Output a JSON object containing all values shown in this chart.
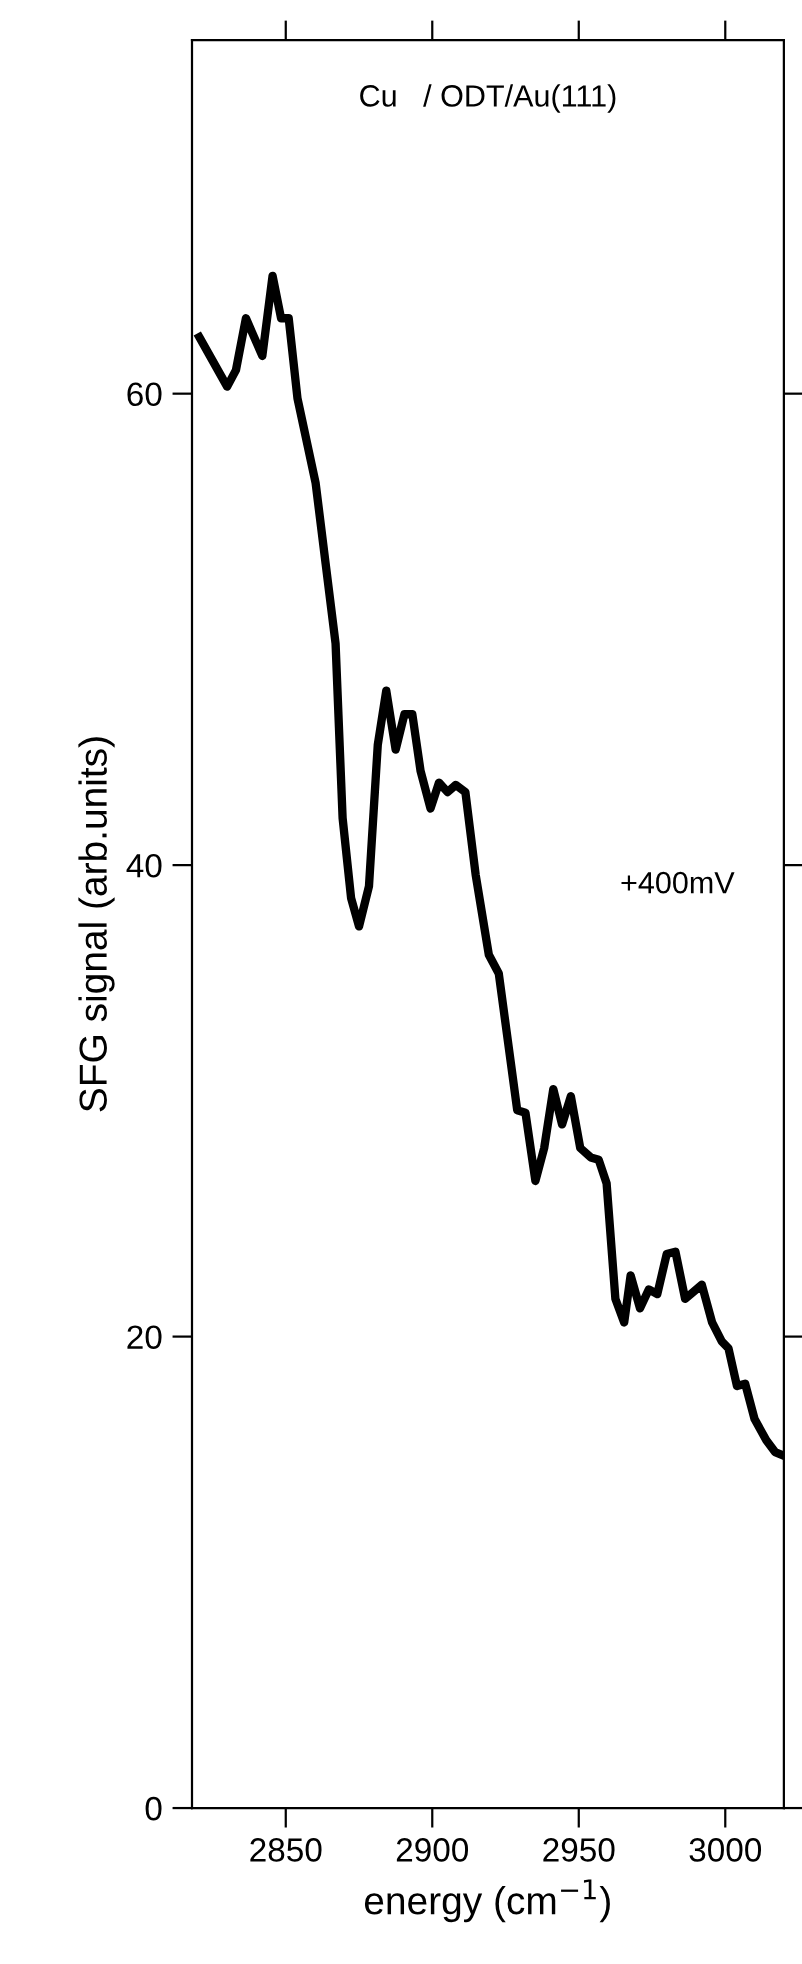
{
  "chart_data": {
    "type": "line",
    "xlabel": "energy (cm$^{−1}$)",
    "ylabel": "SFG signal (arb.units)",
    "annotations": [
      "Cu   / ODT/Au(111)",
      "+400mV"
    ],
    "xlim": [
      2818,
      3020
    ],
    "xticks": [
      2850,
      2900,
      2950,
      3000
    ],
    "ylim": [
      0,
      75
    ],
    "yticks": [
      0,
      20,
      40,
      60
    ],
    "grid": false,
    "legend": false,
    "marker": "none",
    "line_style": "solid",
    "series": [
      {
        "color": "#000000",
        "x": [
          2820.5,
          2830,
          2833,
          2836.4,
          2842,
          2845.5,
          2848.4,
          2851,
          2854,
          2860.2,
          2863.6,
          2867,
          2869.4,
          2872.3,
          2875,
          2878.4,
          2881.4,
          2884.3,
          2887.5,
          2890.5,
          2893.2,
          2896,
          2899.4,
          2902.3,
          2905.2,
          2908,
          2911.3,
          2914.8,
          2919.3,
          2922.7,
          2929,
          2931.8,
          2935.2,
          2938.2,
          2941.3,
          2944.3,
          2947.3,
          2950.5,
          2954.1,
          2956.8,
          2959.5,
          2962.5,
          2965.5,
          2967.7,
          2970.9,
          2973.9,
          2976.8,
          2980,
          2983,
          2986.3,
          2992,
          2995.5,
          2998.8,
          3001.1,
          3004,
          3006.8,
          3010,
          3014,
          3017,
          3019
        ],
        "values": [
          62.4,
          60.3,
          61.0,
          63.2,
          61.6,
          65.0,
          63.2,
          63.2,
          59.8,
          56.2,
          52.8,
          49.4,
          42.0,
          38.6,
          37.4,
          39.1,
          45.1,
          47.4,
          44.9,
          46.4,
          46.4,
          44.0,
          42.4,
          43.5,
          43.1,
          43.4,
          43.1,
          39.6,
          36.2,
          35.4,
          29.6,
          29.5,
          26.6,
          28.0,
          30.5,
          29.0,
          30.2,
          28.0,
          27.6,
          27.5,
          26.5,
          21.6,
          20.6,
          22.6,
          21.2,
          22.0,
          21.8,
          23.5,
          23.6,
          21.6,
          22.2,
          20.6,
          19.8,
          19.5,
          17.9,
          18.0,
          16.5,
          15.6,
          15.1,
          15.0
        ]
      }
    ]
  }
}
